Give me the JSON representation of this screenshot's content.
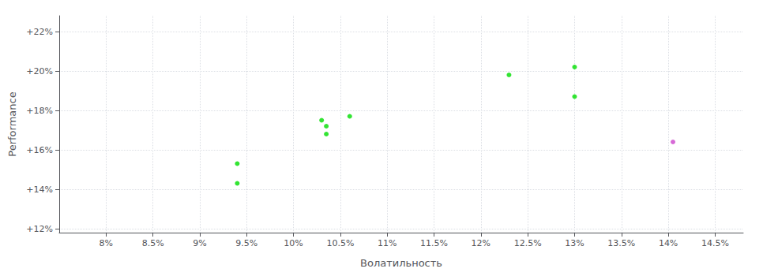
{
  "chart_data": {
    "type": "scatter",
    "xlabel": "Волатильность",
    "ylabel": "Performance",
    "xlim": [
      0.075,
      0.148
    ],
    "ylim": [
      0.118,
      0.228
    ],
    "xticks": [
      {
        "value": 0.08,
        "label": "8%"
      },
      {
        "value": 0.085,
        "label": "8.5%"
      },
      {
        "value": 0.09,
        "label": "9%"
      },
      {
        "value": 0.095,
        "label": "9.5%"
      },
      {
        "value": 0.1,
        "label": "10%"
      },
      {
        "value": 0.105,
        "label": "10.5%"
      },
      {
        "value": 0.11,
        "label": "11%"
      },
      {
        "value": 0.115,
        "label": "11.5%"
      },
      {
        "value": 0.12,
        "label": "12%"
      },
      {
        "value": 0.125,
        "label": "12.5%"
      },
      {
        "value": 0.13,
        "label": "13%"
      },
      {
        "value": 0.135,
        "label": "13.5%"
      },
      {
        "value": 0.14,
        "label": "14%"
      },
      {
        "value": 0.145,
        "label": "14.5%"
      }
    ],
    "yticks": [
      {
        "value": 0.12,
        "label": "+12%"
      },
      {
        "value": 0.14,
        "label": "+14%"
      },
      {
        "value": 0.16,
        "label": "+16%"
      },
      {
        "value": 0.18,
        "label": "+18%"
      },
      {
        "value": 0.2,
        "label": "+20%"
      },
      {
        "value": 0.22,
        "label": "+22%"
      }
    ],
    "grid": true,
    "series": [
      {
        "color": "#00dd00",
        "x": [
          0.094,
          0.094,
          0.103,
          0.1035,
          0.1035,
          0.106,
          0.123,
          0.13,
          0.13
        ],
        "values": [
          0.153,
          0.143,
          0.175,
          0.172,
          0.168,
          0.177,
          0.198,
          0.202,
          0.187
        ]
      },
      {
        "color": "#cc44cc",
        "x": [
          0.1405
        ],
        "values": [
          0.164
        ]
      }
    ]
  }
}
